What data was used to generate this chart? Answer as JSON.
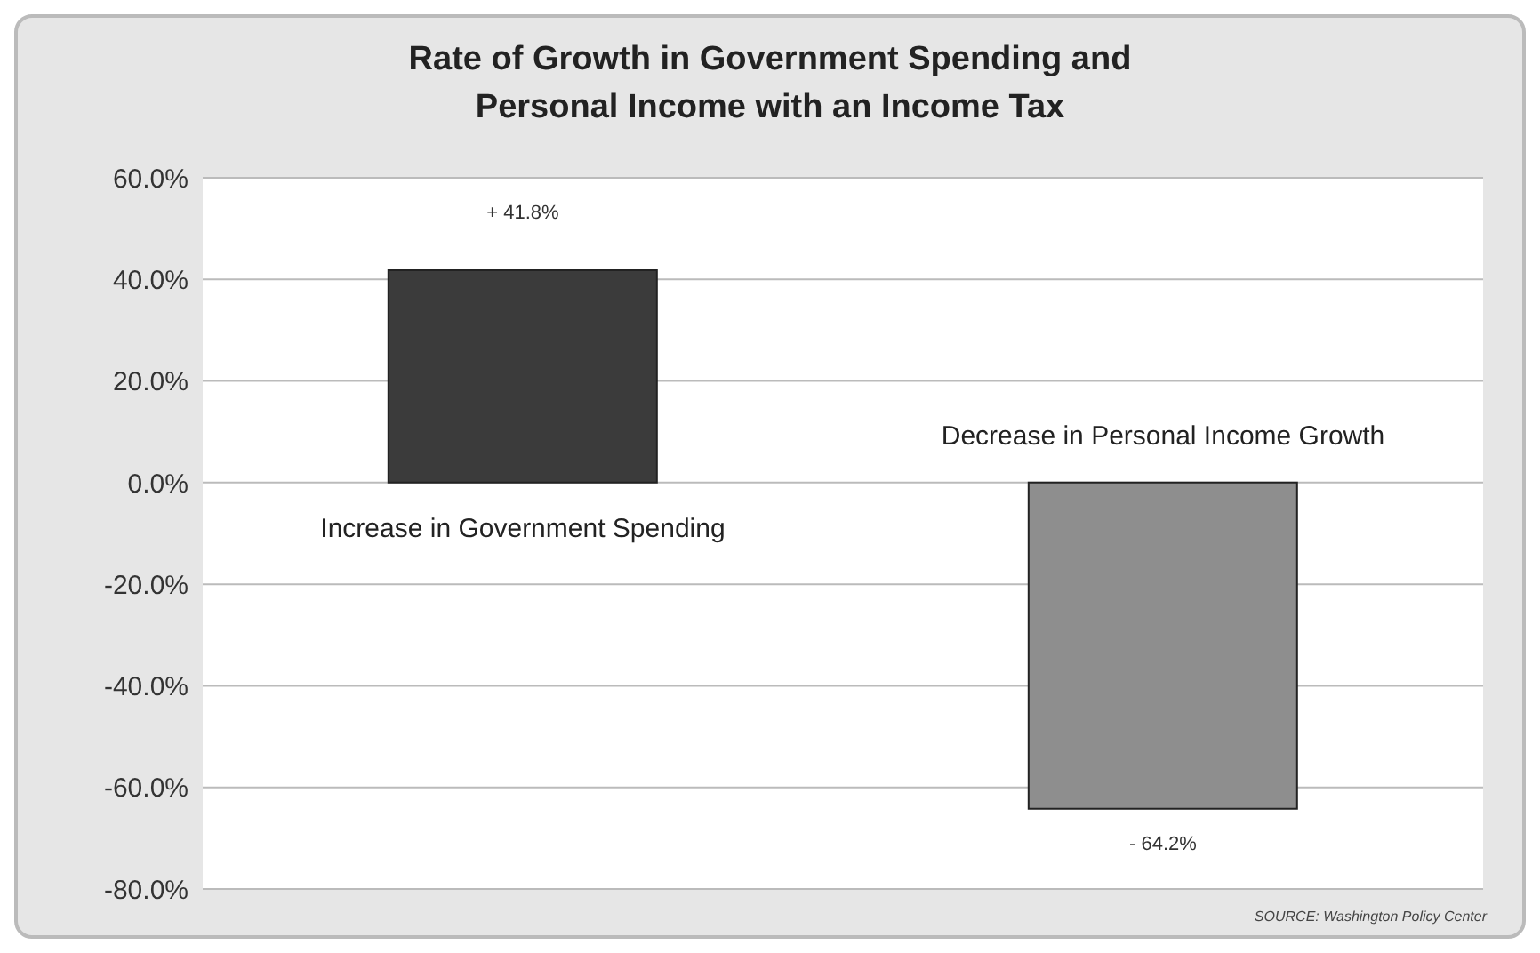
{
  "chart_data": {
    "type": "bar",
    "title": "Rate of Growth in Government Spending and Personal Income with an Income Tax",
    "categories": [
      "Increase in Government Spending",
      "Decrease in Personal Income Growth"
    ],
    "values": [
      41.8,
      -64.2
    ],
    "colors": [
      "#3b3b3b",
      "#8e8e8e"
    ],
    "value_labels": [
      "+ 41.8%",
      "- 64.2%"
    ],
    "ylim": [
      -80,
      60
    ],
    "yticks": [
      {
        "value": -80,
        "label": "-80.0%"
      },
      {
        "value": -60,
        "label": "-60.0%"
      },
      {
        "value": -40,
        "label": "-40.0%"
      },
      {
        "value": -20,
        "label": "-20.0%"
      },
      {
        "value": 0,
        "label": "0.0%"
      },
      {
        "value": 20,
        "label": "20.0%"
      },
      {
        "value": 40,
        "label": "40.0%"
      },
      {
        "value": 60,
        "label": "60.0%"
      }
    ],
    "grid": "y",
    "annotations": [
      "SOURCE: Washington Policy Center"
    ]
  }
}
